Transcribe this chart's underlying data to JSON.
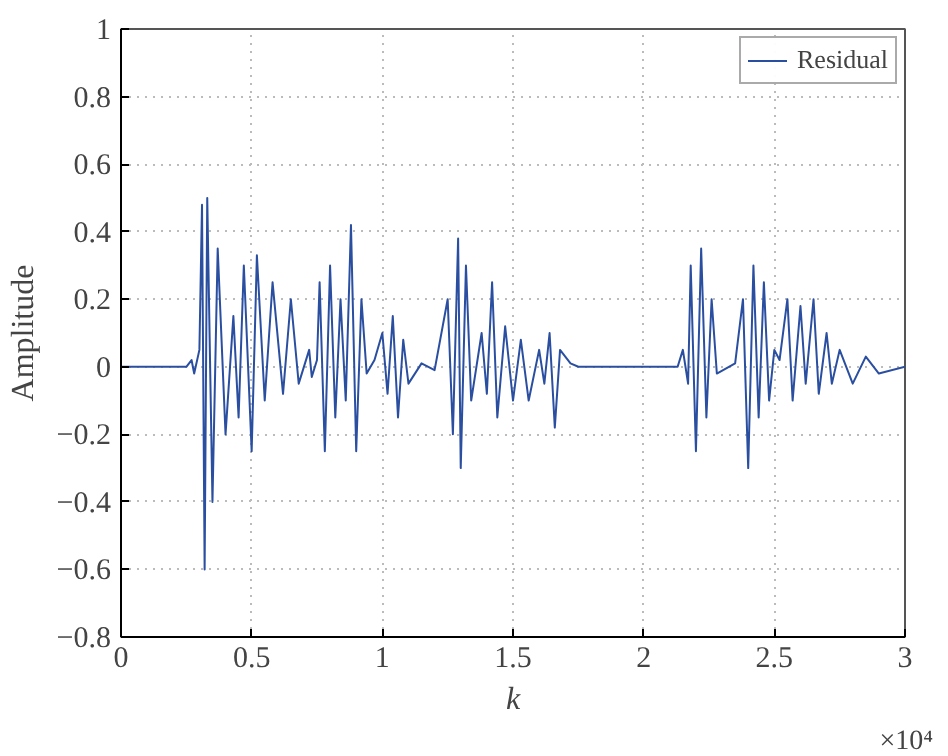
{
  "chart_data": {
    "type": "line",
    "xlabel": "k",
    "ylabel": "Amplitude",
    "xlim": [
      0,
      3
    ],
    "ylim": [
      -0.8,
      1
    ],
    "xticks": [
      0,
      0.5,
      1,
      1.5,
      2,
      2.5,
      3
    ],
    "yticks": [
      -0.8,
      -0.6,
      -0.4,
      -0.2,
      0,
      0.2,
      0.4,
      0.6,
      0.8,
      1
    ],
    "grid": true,
    "legend": "top right",
    "line_style": "solid",
    "annotations": [
      "×10⁴"
    ],
    "x": [
      0,
      0.25,
      0.27,
      0.28,
      0.3,
      0.31,
      0.32,
      0.33,
      0.35,
      0.37,
      0.4,
      0.43,
      0.45,
      0.47,
      0.5,
      0.52,
      0.55,
      0.58,
      0.62,
      0.65,
      0.68,
      0.72,
      0.73,
      0.75,
      0.76,
      0.78,
      0.8,
      0.82,
      0.84,
      0.86,
      0.88,
      0.9,
      0.92,
      0.94,
      0.97,
      1.0,
      1.02,
      1.04,
      1.06,
      1.08,
      1.1,
      1.15,
      1.2,
      1.25,
      1.27,
      1.29,
      1.3,
      1.32,
      1.34,
      1.38,
      1.4,
      1.42,
      1.44,
      1.47,
      1.5,
      1.53,
      1.56,
      1.6,
      1.62,
      1.64,
      1.66,
      1.68,
      1.72,
      1.75,
      2.0,
      2.13,
      2.15,
      2.17,
      2.18,
      2.2,
      2.22,
      2.24,
      2.26,
      2.28,
      2.35,
      2.38,
      2.4,
      2.42,
      2.44,
      2.46,
      2.48,
      2.5,
      2.52,
      2.55,
      2.57,
      2.6,
      2.62,
      2.65,
      2.67,
      2.7,
      2.72,
      2.75,
      2.8,
      2.85,
      2.9,
      3.0
    ],
    "series": [
      {
        "name": "Residual",
        "color": "#2b4fa0",
        "values": [
          0,
          0,
          0.02,
          -0.02,
          0.05,
          0.48,
          -0.6,
          0.5,
          -0.4,
          0.35,
          -0.2,
          0.15,
          -0.15,
          0.3,
          -0.25,
          0.33,
          -0.1,
          0.25,
          -0.08,
          0.2,
          -0.05,
          0.05,
          -0.03,
          0.02,
          0.25,
          -0.25,
          0.3,
          -0.15,
          0.2,
          -0.1,
          0.42,
          -0.25,
          0.2,
          -0.02,
          0.02,
          0.1,
          -0.08,
          0.15,
          -0.15,
          0.08,
          -0.05,
          0.01,
          -0.01,
          0.2,
          -0.2,
          0.38,
          -0.3,
          0.3,
          -0.1,
          0.1,
          -0.08,
          0.25,
          -0.15,
          0.12,
          -0.1,
          0.08,
          -0.1,
          0.05,
          -0.05,
          0.1,
          -0.18,
          0.05,
          0.01,
          0,
          0,
          0,
          0.05,
          -0.05,
          0.3,
          -0.25,
          0.35,
          -0.15,
          0.2,
          -0.02,
          0.01,
          0.2,
          -0.3,
          0.3,
          -0.15,
          0.25,
          -0.1,
          0.05,
          0.02,
          0.2,
          -0.1,
          0.18,
          -0.05,
          0.2,
          -0.08,
          0.1,
          -0.05,
          0.05,
          -0.05,
          0.03,
          -0.02,
          0
        ]
      }
    ]
  }
}
